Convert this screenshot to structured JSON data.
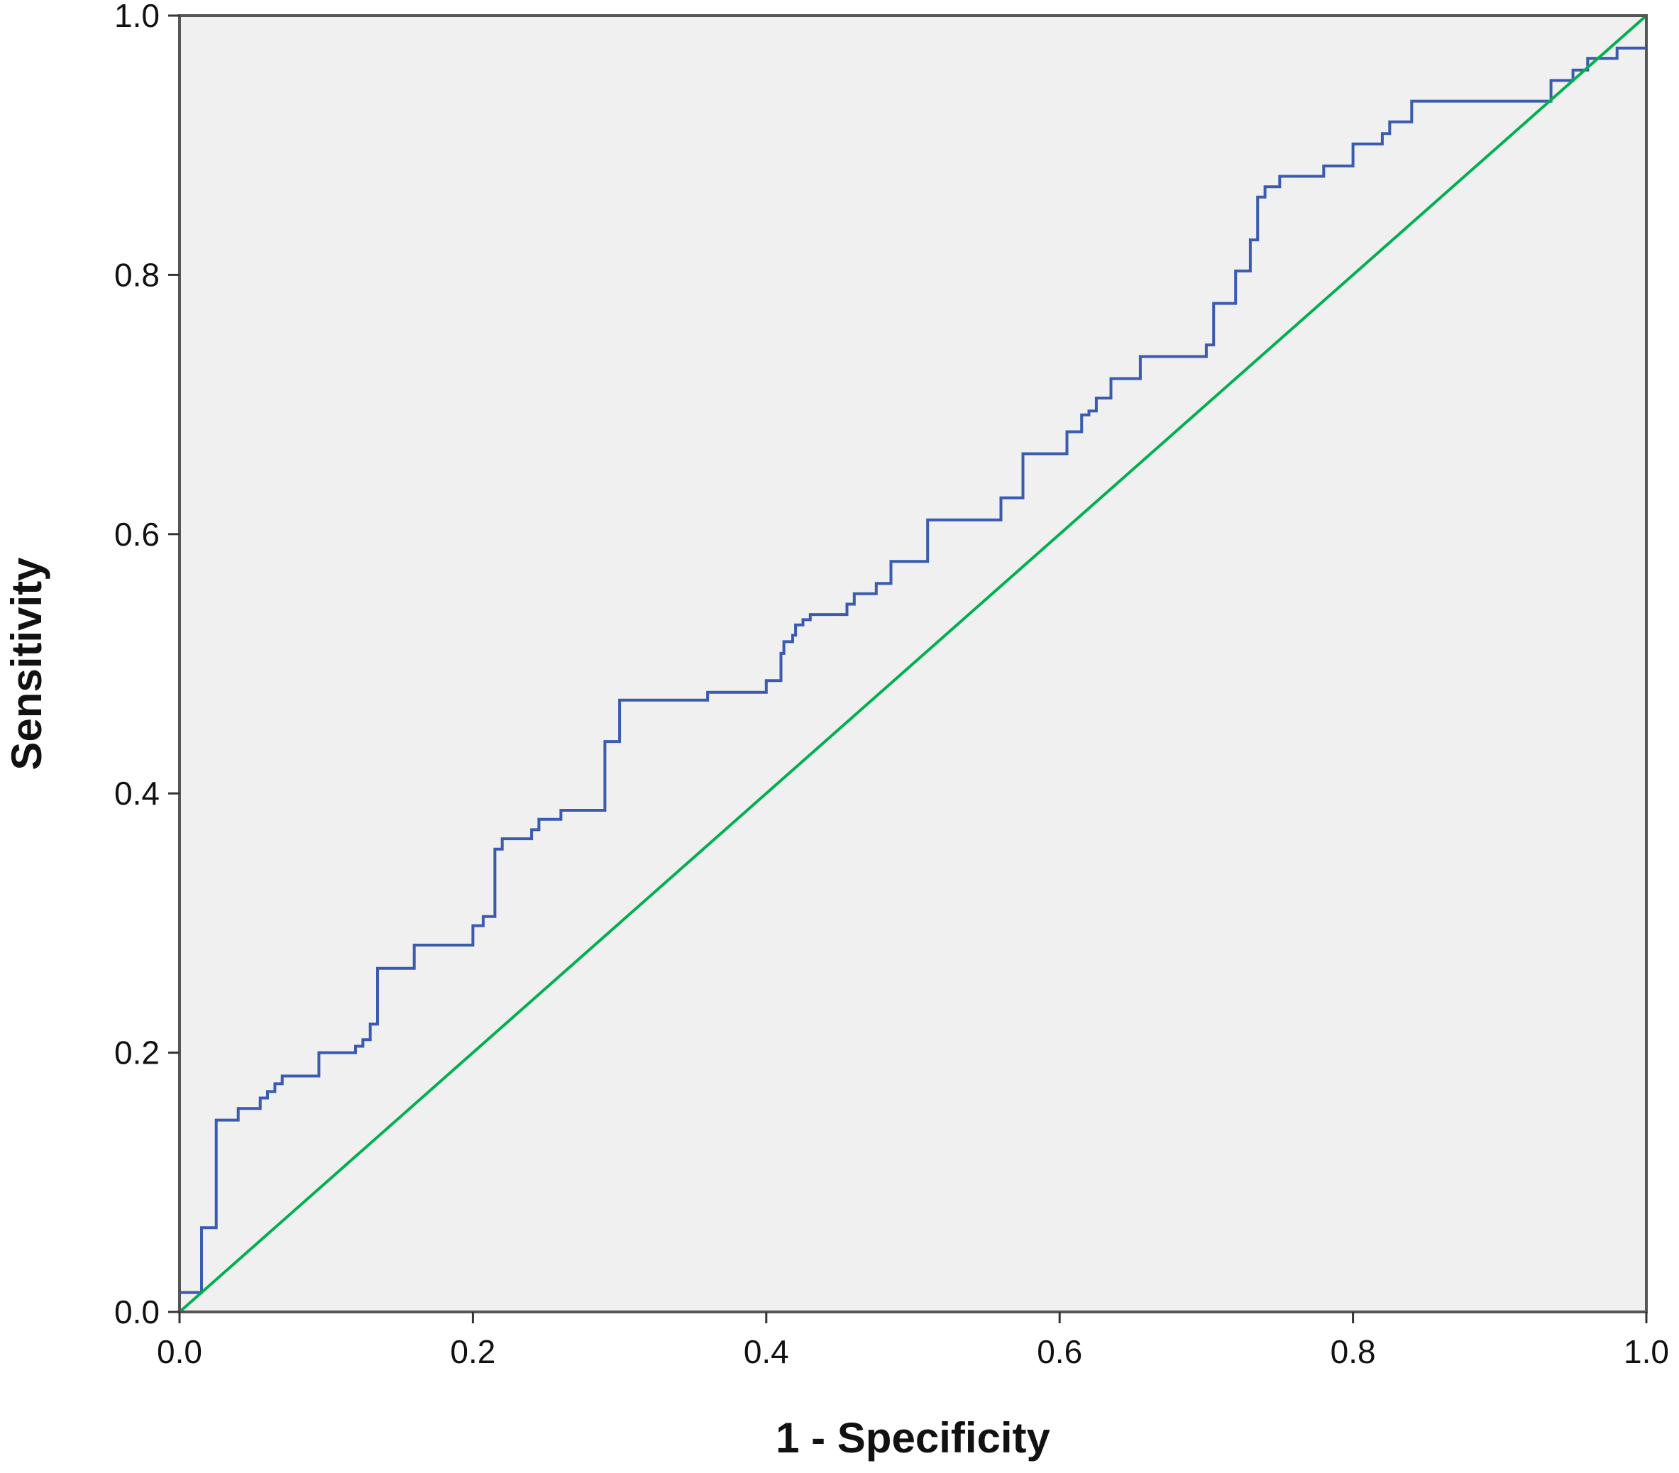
{
  "chart_data": {
    "type": "line",
    "title": "",
    "xlabel": "1 - Specificity",
    "ylabel": "Sensitivity",
    "xlim": [
      0.0,
      1.0
    ],
    "ylim": [
      0.0,
      1.0
    ],
    "x_ticks": [
      "0.0",
      "0.2",
      "0.4",
      "0.6",
      "0.8",
      "1.0"
    ],
    "y_ticks": [
      "0.0",
      "0.2",
      "0.4",
      "0.6",
      "0.8",
      "1.0"
    ],
    "grid": false,
    "legend": "none",
    "colors": {
      "background": "#f0f0f0",
      "frame": "#555555",
      "roc_curve": "#3a5bb0",
      "reference_line": "#00b050"
    },
    "series": [
      {
        "style": "step",
        "color_key": "roc_curve",
        "x": [
          0.0,
          0.015,
          0.015,
          0.025,
          0.025,
          0.04,
          0.04,
          0.055,
          0.055,
          0.06,
          0.06,
          0.065,
          0.065,
          0.07,
          0.07,
          0.075,
          0.075,
          0.095,
          0.095,
          0.12,
          0.12,
          0.125,
          0.125,
          0.13,
          0.13,
          0.135,
          0.135,
          0.16,
          0.16,
          0.2,
          0.2,
          0.207,
          0.207,
          0.215,
          0.215,
          0.22,
          0.22,
          0.24,
          0.24,
          0.245,
          0.245,
          0.26,
          0.26,
          0.27,
          0.27,
          0.29,
          0.29,
          0.3,
          0.3,
          0.36,
          0.36,
          0.4,
          0.4,
          0.405,
          0.405,
          0.41,
          0.41,
          0.412,
          0.412,
          0.418,
          0.418,
          0.42,
          0.42,
          0.425,
          0.425,
          0.43,
          0.43,
          0.455,
          0.455,
          0.46,
          0.46,
          0.475,
          0.475,
          0.485,
          0.485,
          0.51,
          0.51,
          0.56,
          0.56,
          0.575,
          0.575,
          0.605,
          0.605,
          0.615,
          0.615,
          0.62,
          0.62,
          0.625,
          0.625,
          0.635,
          0.635,
          0.655,
          0.655,
          0.7,
          0.7,
          0.705,
          0.705,
          0.72,
          0.72,
          0.73,
          0.73,
          0.735,
          0.735,
          0.74,
          0.74,
          0.75,
          0.75,
          0.78,
          0.78,
          0.8,
          0.8,
          0.82,
          0.82,
          0.825,
          0.825,
          0.84,
          0.84,
          0.845,
          0.845,
          0.935,
          0.935,
          0.95,
          0.95,
          0.96,
          0.96,
          0.98,
          0.98,
          1.0,
          1.0
        ],
        "y": [
          0.015,
          0.015,
          0.065,
          0.065,
          0.148,
          0.148,
          0.157,
          0.157,
          0.165,
          0.165,
          0.17,
          0.17,
          0.176,
          0.176,
          0.182,
          0.182,
          0.182,
          0.182,
          0.2,
          0.2,
          0.205,
          0.205,
          0.21,
          0.21,
          0.222,
          0.222,
          0.265,
          0.265,
          0.283,
          0.283,
          0.298,
          0.298,
          0.305,
          0.305,
          0.357,
          0.357,
          0.365,
          0.365,
          0.372,
          0.372,
          0.38,
          0.38,
          0.387,
          0.387,
          0.387,
          0.387,
          0.44,
          0.44,
          0.472,
          0.472,
          0.478,
          0.478,
          0.487,
          0.487,
          0.487,
          0.487,
          0.508,
          0.508,
          0.517,
          0.517,
          0.522,
          0.522,
          0.53,
          0.53,
          0.534,
          0.534,
          0.538,
          0.538,
          0.546,
          0.546,
          0.554,
          0.554,
          0.562,
          0.562,
          0.579,
          0.579,
          0.611,
          0.611,
          0.628,
          0.628,
          0.662,
          0.662,
          0.679,
          0.679,
          0.692,
          0.692,
          0.695,
          0.695,
          0.705,
          0.705,
          0.72,
          0.72,
          0.737,
          0.737,
          0.746,
          0.746,
          0.778,
          0.778,
          0.803,
          0.803,
          0.827,
          0.827,
          0.86,
          0.86,
          0.868,
          0.868,
          0.876,
          0.876,
          0.884,
          0.884,
          0.901,
          0.901,
          0.909,
          0.909,
          0.918,
          0.918,
          0.934,
          0.934,
          0.934,
          0.934,
          0.95,
          0.95,
          0.958,
          0.958,
          0.967,
          0.967,
          0.975,
          0.975,
          1.0
        ]
      },
      {
        "style": "line",
        "color_key": "reference_line",
        "x": [
          0.0,
          1.0
        ],
        "y": [
          0.0,
          1.0
        ]
      }
    ]
  }
}
